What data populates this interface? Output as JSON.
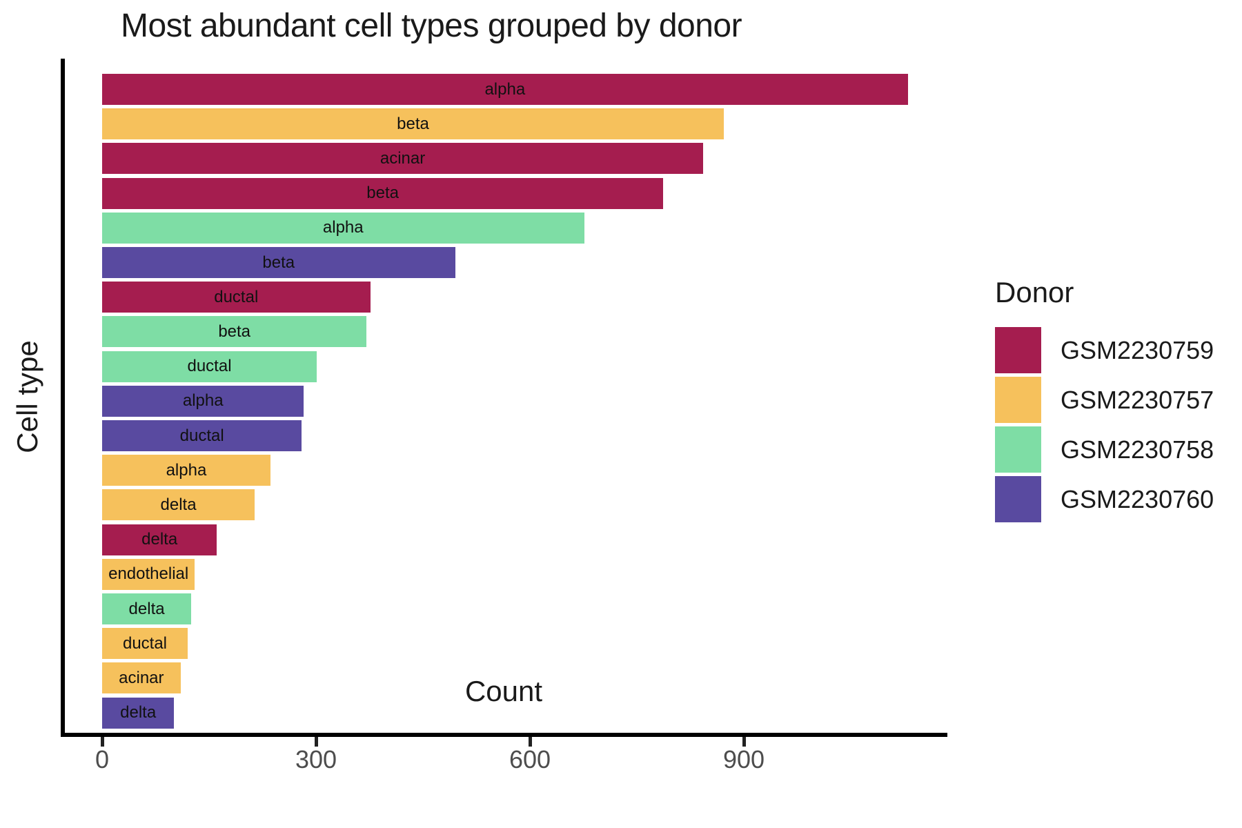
{
  "chart_data": {
    "type": "bar",
    "orientation": "horizontal",
    "title": "Most abundant cell types grouped by donor",
    "xlabel": "Count",
    "ylabel": "Cell type",
    "x_ticks": [
      0,
      300,
      600,
      900
    ],
    "xlim": [
      0,
      1185
    ],
    "grid": false,
    "legend_title": "Donor",
    "legend_position": "right",
    "donors": [
      {
        "id": "GSM2230759",
        "color": "#A51D4F"
      },
      {
        "id": "GSM2230757",
        "color": "#F6C15C"
      },
      {
        "id": "GSM2230758",
        "color": "#7EDDA5"
      },
      {
        "id": "GSM2230760",
        "color": "#594AA0"
      }
    ],
    "bars": [
      {
        "cell_type": "alpha",
        "donor": "GSM2230759",
        "count": 1130
      },
      {
        "cell_type": "beta",
        "donor": "GSM2230757",
        "count": 872
      },
      {
        "cell_type": "acinar",
        "donor": "GSM2230759",
        "count": 843
      },
      {
        "cell_type": "beta",
        "donor": "GSM2230759",
        "count": 787
      },
      {
        "cell_type": "alpha",
        "donor": "GSM2230758",
        "count": 676
      },
      {
        "cell_type": "beta",
        "donor": "GSM2230760",
        "count": 495
      },
      {
        "cell_type": "ductal",
        "donor": "GSM2230759",
        "count": 376
      },
      {
        "cell_type": "beta",
        "donor": "GSM2230758",
        "count": 371
      },
      {
        "cell_type": "ductal",
        "donor": "GSM2230758",
        "count": 301
      },
      {
        "cell_type": "alpha",
        "donor": "GSM2230760",
        "count": 283
      },
      {
        "cell_type": "ductal",
        "donor": "GSM2230760",
        "count": 280
      },
      {
        "cell_type": "alpha",
        "donor": "GSM2230757",
        "count": 236
      },
      {
        "cell_type": "delta",
        "donor": "GSM2230757",
        "count": 214
      },
      {
        "cell_type": "delta",
        "donor": "GSM2230759",
        "count": 161
      },
      {
        "cell_type": "endothelial",
        "donor": "GSM2230757",
        "count": 130
      },
      {
        "cell_type": "delta",
        "donor": "GSM2230758",
        "count": 125
      },
      {
        "cell_type": "ductal",
        "donor": "GSM2230757",
        "count": 120
      },
      {
        "cell_type": "acinar",
        "donor": "GSM2230757",
        "count": 110
      },
      {
        "cell_type": "delta",
        "donor": "GSM2230760",
        "count": 101
      }
    ]
  }
}
